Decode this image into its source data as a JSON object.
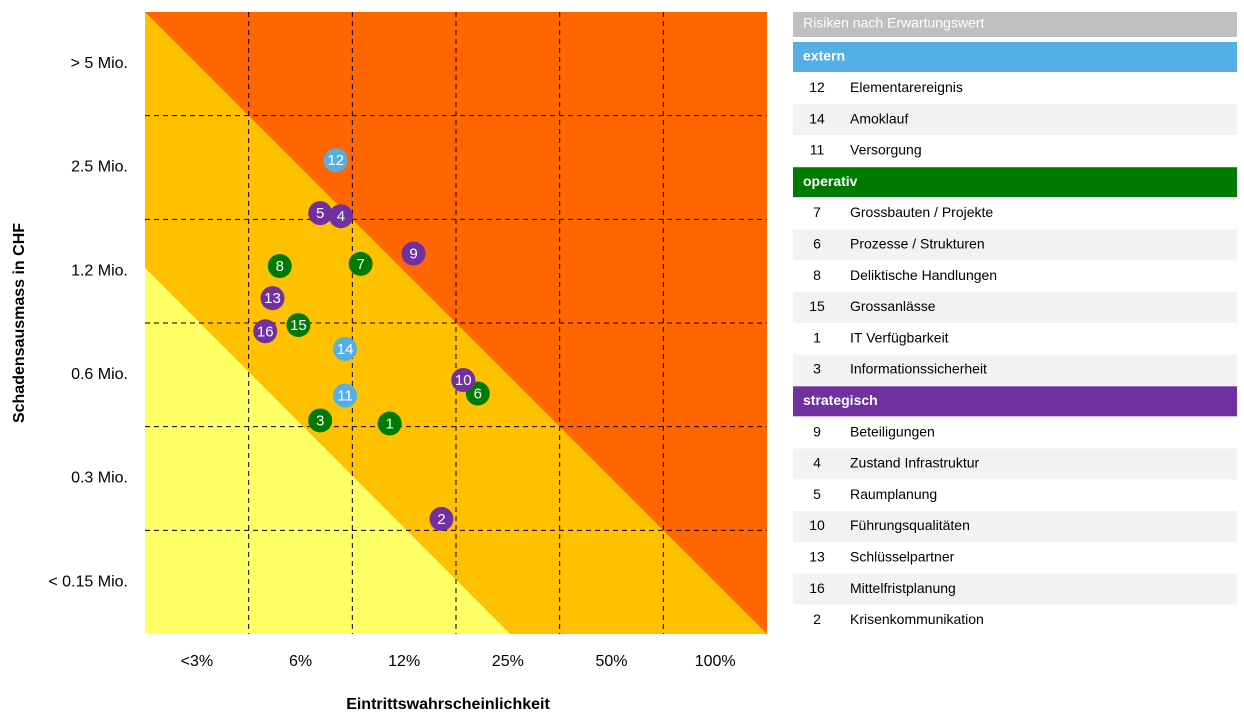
{
  "chart_data": {
    "type": "scatter",
    "title": "Risiken nach Erwartungswert",
    "xlabel": "Eintrittswahrscheinlichkeit",
    "ylabel": "Schadensausmass in CHF",
    "xlim": [
      0,
      6
    ],
    "ylim": [
      0,
      6
    ],
    "xticks": [
      {
        "value": 0.5,
        "label": "<3%"
      },
      {
        "value": 1.5,
        "label": "6%"
      },
      {
        "value": 2.5,
        "label": "12%"
      },
      {
        "value": 3.5,
        "label": "25%"
      },
      {
        "value": 4.5,
        "label": "50%"
      },
      {
        "value": 5.5,
        "label": "100%"
      }
    ],
    "yticks": [
      {
        "value": 5.5,
        "label": "> 5 Mio."
      },
      {
        "value": 4.5,
        "label": "2.5 Mio."
      },
      {
        "value": 3.5,
        "label": "1.2 Mio."
      },
      {
        "value": 2.5,
        "label": "0.6 Mio."
      },
      {
        "value": 1.5,
        "label": "0.3 Mio."
      },
      {
        "value": 0.5,
        "label": "< 0.15 Mio."
      }
    ],
    "grid_x": [
      1,
      2,
      3,
      4,
      5
    ],
    "grid_y": [
      1,
      2,
      3,
      4,
      5
    ],
    "series": [
      {
        "name": "extern",
        "color": "#56aee6",
        "ids": [
          12,
          14,
          11
        ],
        "labels": [
          "Elementarereignis",
          "Amoklauf",
          "Versorgung"
        ],
        "x": [
          1.84,
          1.93,
          1.93
        ],
        "values": [
          4.57,
          2.75,
          2.3
        ]
      },
      {
        "name": "operativ",
        "color": "#007a00",
        "ids": [
          7,
          6,
          8,
          15,
          1,
          3
        ],
        "labels": [
          "Grossbauten / Projekte",
          "Prozesse / Strukturen",
          "Deliktische Handlungen",
          "Grossanlässe",
          "IT Verfügbarkeit",
          "Informationssicherheit"
        ],
        "x": [
          2.08,
          3.21,
          1.3,
          1.48,
          2.36,
          1.69
        ],
        "values": [
          3.57,
          2.32,
          3.55,
          2.98,
          2.03,
          2.06
        ]
      },
      {
        "name": "strategisch",
        "color": "#7030a0",
        "ids": [
          9,
          4,
          5,
          10,
          13,
          16,
          2
        ],
        "labels": [
          "Beteiligungen",
          "Zustand Infrastruktur",
          "Raumplanung",
          "Führungsqualitäten",
          "Schlüsselpartner",
          "Mittelfristplanung",
          "Krisenkommunikation"
        ],
        "x": [
          2.59,
          1.89,
          1.69,
          3.07,
          1.23,
          1.16,
          2.86
        ],
        "values": [
          3.67,
          4.03,
          4.06,
          2.45,
          3.24,
          2.92,
          1.11
        ]
      }
    ]
  }
}
